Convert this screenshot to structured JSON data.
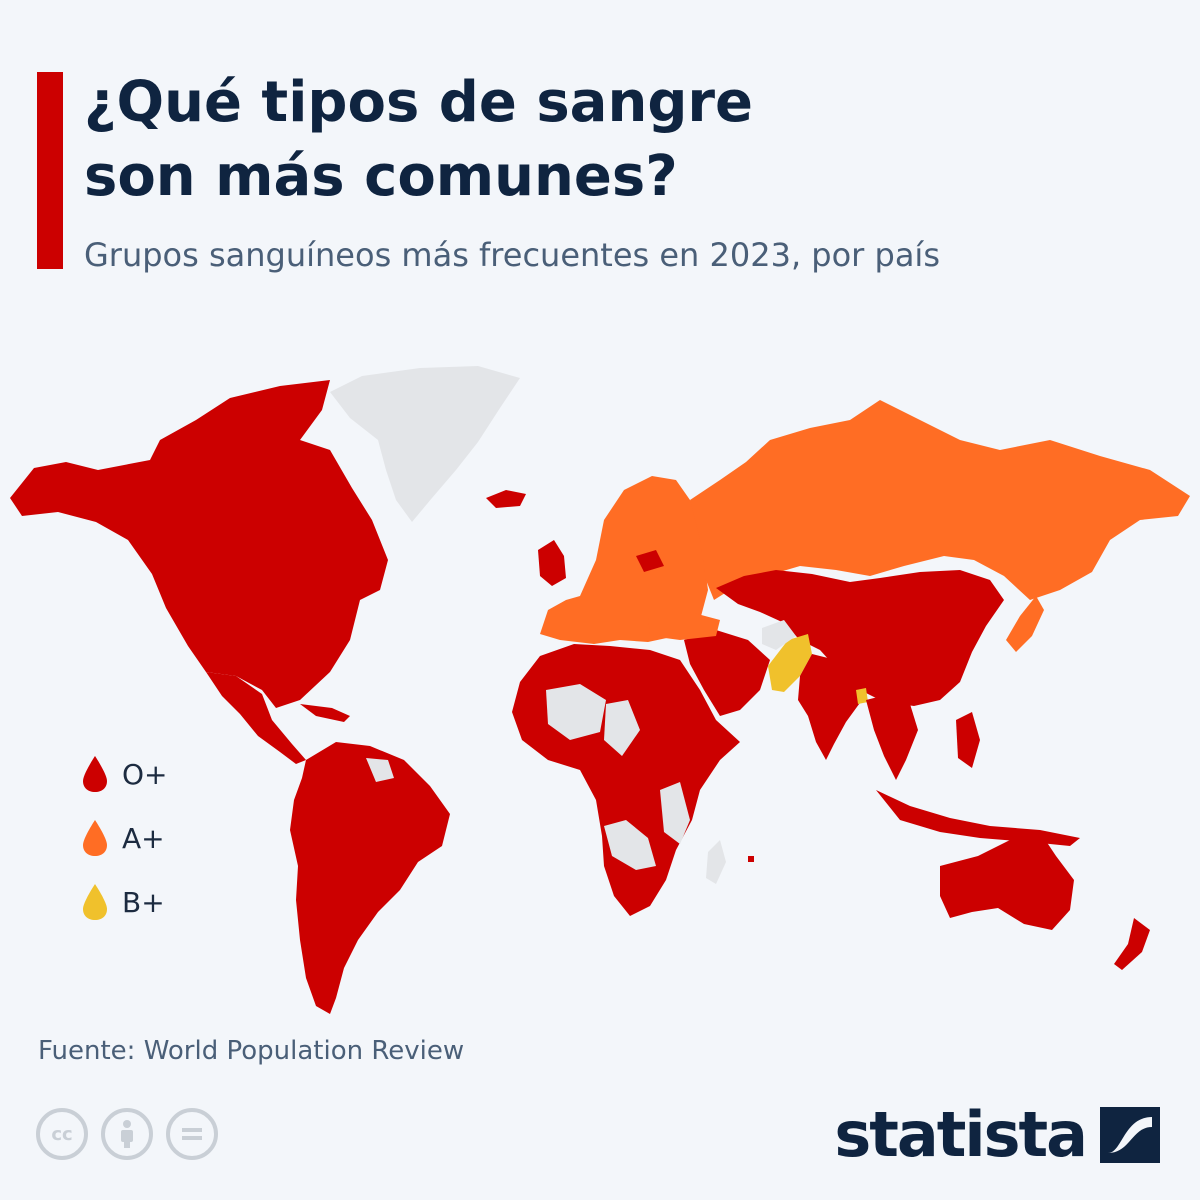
{
  "header": {
    "title_line1": "¿Qué tipos de sangre",
    "title_line2": "son más comunes?",
    "subtitle": "Grupos sanguíneos más frecuentes en 2023, por país"
  },
  "legend": {
    "items": [
      {
        "label": "O+",
        "color": "#cc0000"
      },
      {
        "label": "A+",
        "color": "#ff6d24"
      },
      {
        "label": "B+",
        "color": "#f0c12c"
      }
    ]
  },
  "colors": {
    "accent": "#cc0000",
    "o_positive": "#cc0000",
    "a_positive": "#ff6d24",
    "b_positive": "#f0c12c",
    "no_data": "#e3e5e8",
    "title": "#0f2440"
  },
  "footer": {
    "source": "Fuente: World Population Review",
    "brand": "statista",
    "license_icons": [
      "cc-icon",
      "attribution-icon",
      "no-derivatives-icon"
    ]
  }
}
